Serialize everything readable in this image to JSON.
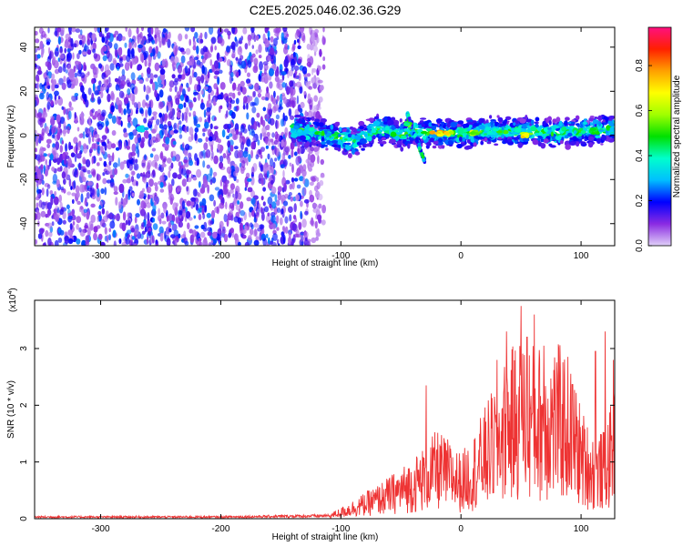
{
  "title": "C2E5.2025.046.02.36.G29",
  "chart_data": [
    {
      "type": "heatmap",
      "name": "spectrogram",
      "xlabel": "Height of straight line (km)",
      "ylabel": "Frequency (Hz)",
      "xlim": [
        -355,
        128
      ],
      "ylim": [
        -50,
        49
      ],
      "xticks": [
        -300,
        -200,
        -100,
        0,
        100
      ],
      "yticks": [
        -40,
        -20,
        0,
        20,
        40
      ],
      "xtick_labels": [
        "-300",
        "-200",
        "-100",
        "0",
        "100"
      ],
      "ytick_labels": [
        "-40",
        "-20",
        "0",
        "20",
        "40"
      ],
      "colorbar": {
        "label": "Normalized spectral amplitude",
        "range": [
          0,
          0.97
        ],
        "ticks": [
          0,
          0.2,
          0.4,
          0.6,
          0.8
        ],
        "tick_labels": [
          "0.0",
          "0.2",
          "0.4",
          "0.6",
          "0.8"
        ],
        "colors": [
          "#e0d0f8",
          "#8a2be2",
          "#0000ff",
          "#00bfff",
          "#00ffcc",
          "#00e000",
          "#a0ff00",
          "#ffff00",
          "#ffa000",
          "#ff2000",
          "#ff1080"
        ]
      },
      "noise_region_x": [
        -355,
        -128
      ],
      "signal_track": {
        "x": [
          -140,
          -120,
          -100,
          -90,
          -80,
          -70,
          -60,
          -50,
          -40,
          -30,
          -20,
          0,
          20,
          40,
          60,
          80,
          100,
          128
        ],
        "freq": [
          3,
          1,
          -1,
          -3,
          0,
          3,
          2,
          0,
          2,
          1,
          1,
          1,
          2,
          2,
          2,
          1,
          2,
          3
        ]
      },
      "hot_spots": [
        {
          "x": -20,
          "freq": 1,
          "amp": 0.9
        },
        {
          "x": -10,
          "freq": 1,
          "amp": 0.85
        },
        {
          "x": 10,
          "freq": 1,
          "amp": 0.75
        },
        {
          "x": 55,
          "freq": 0,
          "amp": 0.8
        },
        {
          "x": -43,
          "freq": 5,
          "amp": 0.6
        },
        {
          "x": -265,
          "freq": 3,
          "amp": 0.35
        }
      ]
    },
    {
      "type": "line",
      "name": "snr",
      "xlabel": "Height of straight line (km)",
      "ylabel": "SNR (10 * v/v)",
      "y_multiplier_label": "(x10",
      "y_multiplier_exp": "4",
      "y_multiplier_close": ")",
      "color": "#ee3333",
      "xlim": [
        -355,
        128
      ],
      "ylim": [
        0,
        3.85
      ],
      "xticks": [
        -300,
        -200,
        -100,
        0,
        100
      ],
      "yticks": [
        0,
        1,
        2,
        3
      ],
      "xtick_labels": [
        "-300",
        "-200",
        "-100",
        "0",
        "100"
      ],
      "ytick_labels": [
        "0",
        "1",
        "2",
        "3"
      ],
      "envelope": {
        "x": [
          -355,
          -200,
          -110,
          -100,
          -90,
          -80,
          -70,
          -60,
          -50,
          -40,
          -30,
          -20,
          -10,
          0,
          10,
          20,
          30,
          40,
          50,
          60,
          70,
          80,
          90,
          100,
          110,
          120,
          128
        ],
        "y": [
          0.03,
          0.03,
          0.05,
          0.12,
          0.2,
          0.28,
          0.36,
          0.45,
          0.55,
          0.65,
          0.8,
          0.95,
          0.85,
          0.7,
          0.9,
          1.2,
          1.5,
          1.8,
          1.95,
          1.9,
          1.85,
          1.9,
          1.75,
          1.2,
          0.9,
          0.95,
          1.4
        ]
      },
      "peaks": [
        {
          "x": -29,
          "y": 2.35
        },
        {
          "x": 30,
          "y": 2.8
        },
        {
          "x": 38,
          "y": 3.3
        },
        {
          "x": 50,
          "y": 3.75
        },
        {
          "x": 55,
          "y": 3.2
        },
        {
          "x": 61,
          "y": 3.6
        },
        {
          "x": 69,
          "y": 3.05
        },
        {
          "x": 112,
          "y": 2.95
        },
        {
          "x": 120,
          "y": 3.3
        },
        {
          "x": 127,
          "y": 2.8
        }
      ]
    }
  ]
}
